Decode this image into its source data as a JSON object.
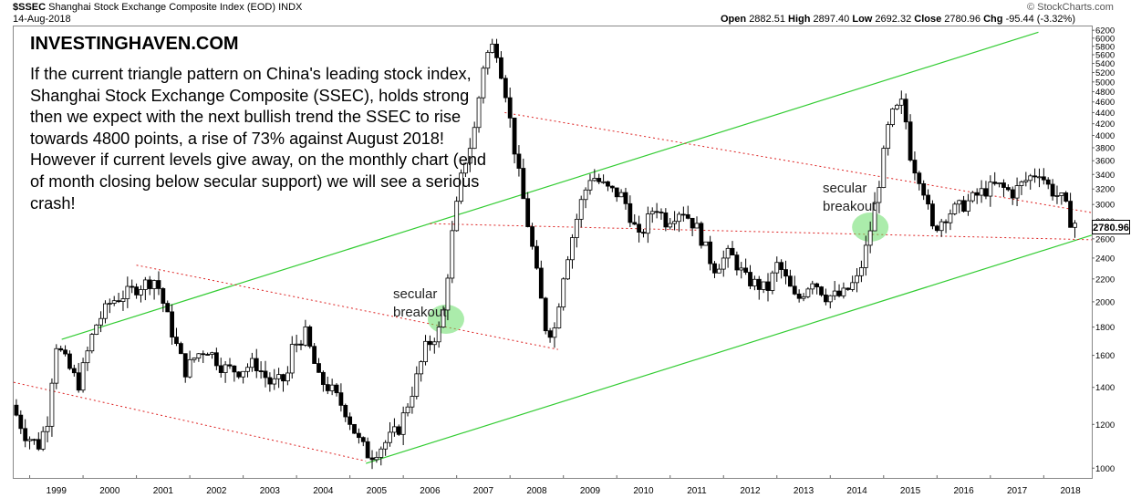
{
  "header": {
    "symbol": "$SSEC",
    "name": "Shanghai Stock Exchange Composite Index (EOD)",
    "exchange": "INDX",
    "date": "14-Aug-2018",
    "watermark": "© StockCharts.com",
    "open_label": "Open",
    "open_value": "2882.51",
    "high_label": "High",
    "high_value": "2897.40",
    "low_label": "Low",
    "low_value": "2692.32",
    "close_label": "Close",
    "close_value": "2780.96",
    "chg_label": "Chg",
    "chg_value": "-95.44 (-3.32%)",
    "chg_color": "#000000"
  },
  "brand": "INVESTINGHAVEN.COM",
  "note": "If the current triangle pattern on China's leading stock index, Shanghai Stock Exchange Composite (SSEC), holds strong then we expect with the next bullish trend the SSEC to rise towards 4800 points, a rise of 73% against August 2018! However if current levels give away, on the monthly chart (end of month closing below secular support) we will see a serious crash!",
  "annotations": [
    {
      "line1": "secular",
      "line2": "breakout",
      "date": 2006.8,
      "value": 1860
    },
    {
      "line1": "secular",
      "line2": "breakout",
      "date": 2014.75,
      "value": 2730
    }
  ],
  "last_price_label": "2780.96",
  "chart_data": {
    "type": "candlestick",
    "title": "Shanghai Stock Exchange Composite Index (EOD)",
    "x_axis": {
      "labels": [
        "1999",
        "2000",
        "2001",
        "2002",
        "2003",
        "2004",
        "2005",
        "2006",
        "2007",
        "2008",
        "2009",
        "2010",
        "2011",
        "2012",
        "2013",
        "2014",
        "2015",
        "2016",
        "2017",
        "2018"
      ],
      "range": [
        1998.7,
        2018.9
      ]
    },
    "y_axis": {
      "scale": "log",
      "side": "right",
      "range": [
        960,
        6300
      ],
      "ticks": [
        6200,
        6000,
        5800,
        5600,
        5400,
        5200,
        5000,
        4800,
        4600,
        4400,
        4200,
        4000,
        3800,
        3600,
        3400,
        3200,
        3000,
        2800,
        2600,
        2400,
        2200,
        2000,
        1800,
        1600,
        1400,
        1200,
        1000
      ]
    },
    "grid": false,
    "colors": {
      "up": "#ffffff",
      "down": "#000000",
      "support": "#33cc33",
      "channel": "#dd2222",
      "highlight": "#66dd66"
    },
    "trendlines": [
      {
        "style": "solid",
        "color": "#33cc33",
        "from": [
          1999.6,
          1710
        ],
        "to": [
          2017.9,
          6150
        ]
      },
      {
        "style": "solid",
        "color": "#33cc33",
        "from": [
          2005.3,
          1020
        ],
        "to": [
          2018.9,
          2640
        ]
      },
      {
        "style": "dotted",
        "color": "#dd2222",
        "from": [
          1998.7,
          1430
        ],
        "to": [
          2005.3,
          1030
        ]
      },
      {
        "style": "dotted",
        "color": "#dd2222",
        "from": [
          2001.0,
          2330
        ],
        "to": [
          2008.9,
          1640
        ]
      },
      {
        "style": "dotted",
        "color": "#dd2222",
        "from": [
          2006.5,
          2770
        ],
        "to": [
          2018.9,
          2590
        ]
      },
      {
        "style": "dotted",
        "color": "#dd2222",
        "from": [
          2007.9,
          4400
        ],
        "to": [
          2018.9,
          2900
        ]
      }
    ],
    "highlights": [
      {
        "date": 2006.8,
        "value": 1860
      },
      {
        "date": 2014.75,
        "value": 2730
      }
    ],
    "anchors": [
      [
        1998.75,
        1300
      ],
      [
        1999.0,
        1150
      ],
      [
        1999.25,
        1100
      ],
      [
        1999.45,
        1250
      ],
      [
        1999.55,
        1700
      ],
      [
        1999.85,
        1500
      ],
      [
        2000.0,
        1420
      ],
      [
        2000.3,
        1800
      ],
      [
        2000.6,
        2000
      ],
      [
        2000.9,
        2070
      ],
      [
        2001.2,
        2150
      ],
      [
        2001.45,
        2200
      ],
      [
        2001.55,
        2040
      ],
      [
        2001.8,
        1700
      ],
      [
        2002.0,
        1500
      ],
      [
        2002.2,
        1600
      ],
      [
        2002.4,
        1650
      ],
      [
        2002.7,
        1520
      ],
      [
        2003.0,
        1500
      ],
      [
        2003.3,
        1550
      ],
      [
        2003.6,
        1420
      ],
      [
        2003.9,
        1450
      ],
      [
        2004.0,
        1650
      ],
      [
        2004.25,
        1750
      ],
      [
        2004.5,
        1450
      ],
      [
        2004.75,
        1380
      ],
      [
        2005.0,
        1270
      ],
      [
        2005.25,
        1120
      ],
      [
        2005.45,
        1050
      ],
      [
        2005.7,
        1100
      ],
      [
        2006.0,
        1180
      ],
      [
        2006.3,
        1420
      ],
      [
        2006.5,
        1650
      ],
      [
        2006.8,
        1800
      ],
      [
        2007.0,
        2650
      ],
      [
        2007.2,
        3500
      ],
      [
        2007.4,
        4000
      ],
      [
        2007.6,
        5500
      ],
      [
        2007.8,
        5900
      ],
      [
        2008.0,
        4800
      ],
      [
        2008.2,
        3600
      ],
      [
        2008.5,
        2500
      ],
      [
        2008.75,
        1800
      ],
      [
        2008.9,
        1750
      ],
      [
        2009.1,
        2300
      ],
      [
        2009.4,
        3000
      ],
      [
        2009.6,
        3400
      ],
      [
        2009.9,
        3200
      ],
      [
        2010.2,
        3100
      ],
      [
        2010.5,
        2600
      ],
      [
        2010.8,
        3000
      ],
      [
        2011.0,
        2800
      ],
      [
        2011.3,
        2950
      ],
      [
        2011.6,
        2700
      ],
      [
        2011.9,
        2300
      ],
      [
        2012.2,
        2450
      ],
      [
        2012.5,
        2200
      ],
      [
        2012.9,
        2100
      ],
      [
        2013.1,
        2350
      ],
      [
        2013.45,
        2000
      ],
      [
        2013.75,
        2200
      ],
      [
        2014.0,
        2050
      ],
      [
        2014.3,
        2050
      ],
      [
        2014.6,
        2200
      ],
      [
        2014.8,
        2600
      ],
      [
        2015.0,
        3300
      ],
      [
        2015.2,
        4300
      ],
      [
        2015.45,
        4600
      ],
      [
        2015.6,
        3600
      ],
      [
        2015.8,
        3300
      ],
      [
        2016.0,
        2700
      ],
      [
        2016.3,
        2900
      ],
      [
        2016.6,
        3000
      ],
      [
        2016.9,
        3150
      ],
      [
        2017.2,
        3250
      ],
      [
        2017.5,
        3150
      ],
      [
        2017.8,
        3350
      ],
      [
        2018.0,
        3450
      ],
      [
        2018.2,
        3200
      ],
      [
        2018.45,
        3050
      ],
      [
        2018.6,
        2780
      ]
    ]
  }
}
